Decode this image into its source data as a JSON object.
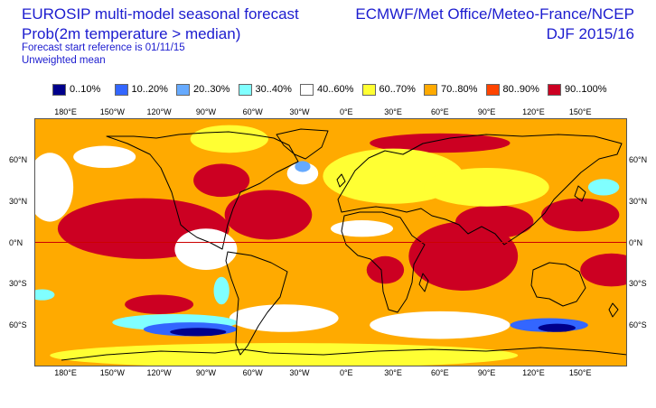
{
  "header": {
    "title": "EUROSIP multi-model seasonal forecast",
    "subtitle": "Prob(2m temperature > median)",
    "start_reference": "Forecast start reference is 01/11/15",
    "method": "Unweighted mean",
    "centres": "ECMWF/Met Office/Meteo-France/NCEP",
    "season": "DJF 2015/16"
  },
  "legend": [
    {
      "label": "0..10%",
      "color": "#00008b"
    },
    {
      "label": "10..20%",
      "color": "#3366ff"
    },
    {
      "label": "20..30%",
      "color": "#66aaff"
    },
    {
      "label": "30..40%",
      "color": "#80ffff"
    },
    {
      "label": "40..60%",
      "color": "#ffffff"
    },
    {
      "label": "60..70%",
      "color": "#ffff33"
    },
    {
      "label": "70..80%",
      "color": "#ffaa00"
    },
    {
      "label": "80..90%",
      "color": "#ff4400"
    },
    {
      "label": "90..100%",
      "color": "#cc0022"
    }
  ],
  "axes": {
    "lon_labels": [
      "180°E",
      "150°W",
      "120°W",
      "90°W",
      "60°W",
      "30°W",
      "0°E",
      "30°E",
      "60°E",
      "90°E",
      "120°E",
      "150°E"
    ],
    "lat_labels": [
      "60°N",
      "30°N",
      "0°N",
      "30°S",
      "60°S"
    ]
  },
  "map_data": {
    "projection": "equirectangular",
    "lon_range": [
      -200,
      180
    ],
    "lat_range": [
      -90,
      90
    ],
    "equator_highlight": true,
    "anomaly_regions": [
      {
        "level": 8,
        "lon": -130,
        "lat": 10,
        "rx": 55,
        "ry": 22
      },
      {
        "level": 8,
        "lon": -50,
        "lat": 20,
        "rx": 28,
        "ry": 18
      },
      {
        "level": 8,
        "lon": 75,
        "lat": -10,
        "rx": 35,
        "ry": 25
      },
      {
        "level": 8,
        "lon": 95,
        "lat": 15,
        "rx": 25,
        "ry": 12
      },
      {
        "level": 8,
        "lon": 150,
        "lat": 20,
        "rx": 25,
        "ry": 12
      },
      {
        "level": 8,
        "lon": 170,
        "lat": -20,
        "rx": 20,
        "ry": 12
      },
      {
        "level": 8,
        "lon": -120,
        "lat": -45,
        "rx": 22,
        "ry": 7
      },
      {
        "level": 8,
        "lon": 25,
        "lat": -20,
        "rx": 12,
        "ry": 10
      },
      {
        "level": 8,
        "lon": 60,
        "lat": 72,
        "rx": 45,
        "ry": 7
      },
      {
        "level": 8,
        "lon": -80,
        "lat": 45,
        "rx": 18,
        "ry": 12
      },
      {
        "level": 5,
        "lon": 30,
        "lat": 48,
        "rx": 45,
        "ry": 20
      },
      {
        "level": 5,
        "lon": 90,
        "lat": 40,
        "rx": 40,
        "ry": 14
      },
      {
        "level": 4,
        "lon": -28,
        "lat": 50,
        "rx": 10,
        "ry": 8
      },
      {
        "level": 4,
        "lon": -155,
        "lat": 62,
        "rx": 20,
        "ry": 8
      },
      {
        "level": 4,
        "lon": 10,
        "lat": 10,
        "rx": 20,
        "ry": 6
      },
      {
        "level": 4,
        "lon": -90,
        "lat": -5,
        "rx": 20,
        "ry": 15
      },
      {
        "level": 4,
        "lon": -190,
        "lat": 40,
        "rx": 15,
        "ry": 25
      },
      {
        "level": 4,
        "lon": -40,
        "lat": -55,
        "rx": 35,
        "ry": 10
      },
      {
        "level": 4,
        "lon": 60,
        "lat": -60,
        "rx": 45,
        "ry": 10
      },
      {
        "level": 3,
        "lon": -80,
        "lat": -35,
        "rx": 5,
        "ry": 10
      },
      {
        "level": 3,
        "lon": 165,
        "lat": 40,
        "rx": 10,
        "ry": 6
      },
      {
        "level": 3,
        "lon": -195,
        "lat": -38,
        "rx": 8,
        "ry": 4
      },
      {
        "level": 3,
        "lon": -110,
        "lat": -58,
        "rx": 40,
        "ry": 6
      },
      {
        "level": 2,
        "lon": -28,
        "lat": 55,
        "rx": 5,
        "ry": 4
      },
      {
        "level": 1,
        "lon": -100,
        "lat": -63,
        "rx": 30,
        "ry": 5
      },
      {
        "level": 1,
        "lon": 130,
        "lat": -60,
        "rx": 25,
        "ry": 5
      },
      {
        "level": 0,
        "lon": -95,
        "lat": -65,
        "rx": 18,
        "ry": 3
      },
      {
        "level": 0,
        "lon": 135,
        "lat": -62,
        "rx": 12,
        "ry": 3
      },
      {
        "level": 5,
        "lon": -40,
        "lat": -82,
        "rx": 150,
        "ry": 9
      },
      {
        "level": 5,
        "lon": -75,
        "lat": 75,
        "rx": 25,
        "ry": 10
      }
    ]
  }
}
